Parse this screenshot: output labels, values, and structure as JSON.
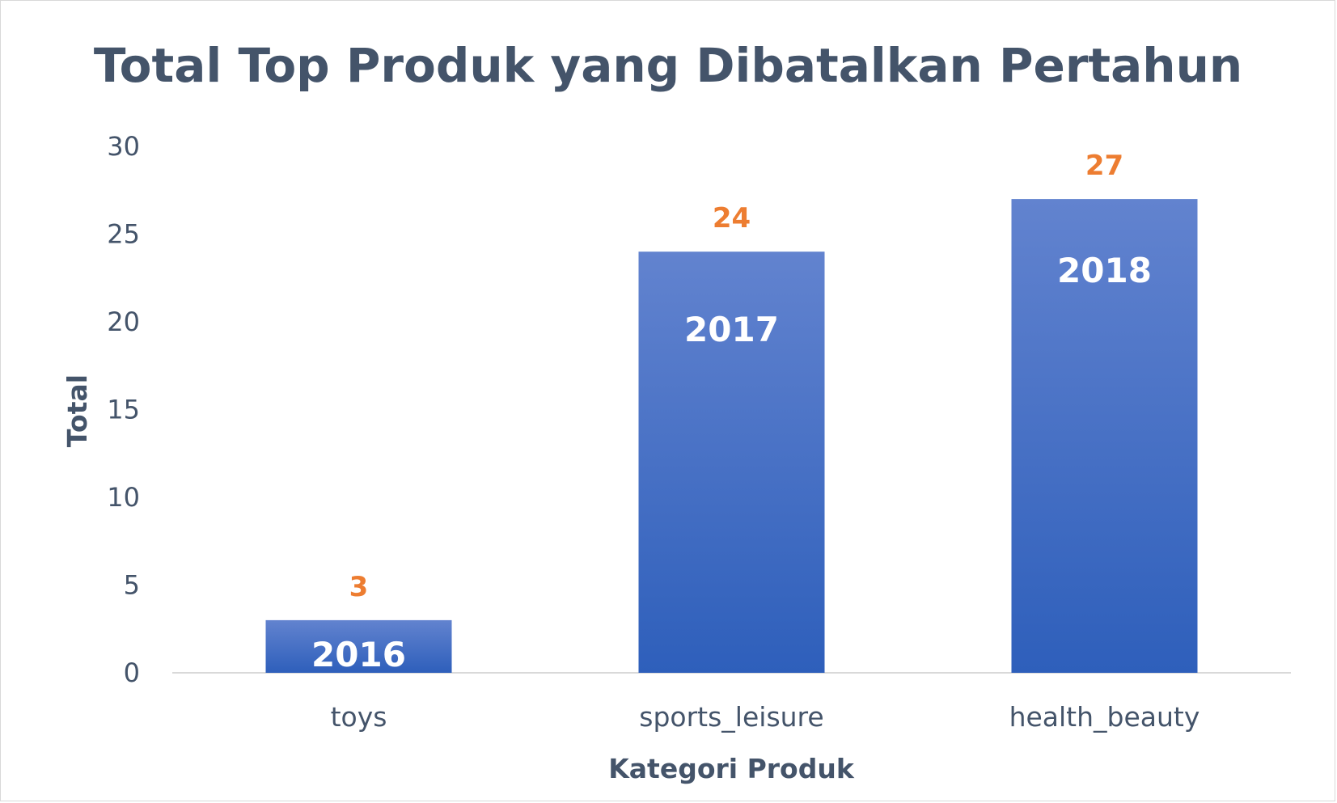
{
  "chart_data": {
    "type": "bar",
    "title": "Total Top Produk yang Dibatalkan Pertahun",
    "xlabel": "Kategori Produk",
    "ylabel": "Total",
    "categories": [
      "toys",
      "sports_leisure",
      "health_beauty"
    ],
    "values": [
      3,
      24,
      27
    ],
    "bar_labels": [
      "2016",
      "2017",
      "2018"
    ],
    "ylim": [
      0,
      30
    ],
    "yticks": [
      0,
      5,
      10,
      15,
      20,
      25,
      30
    ],
    "grid": false,
    "legend": "none",
    "colors": {
      "bar_top": "#6283cf",
      "bar_bottom": "#2e5fbb",
      "value_label": "#ed7d31",
      "text": "#44546a",
      "axis": "#d9d9d9"
    }
  }
}
